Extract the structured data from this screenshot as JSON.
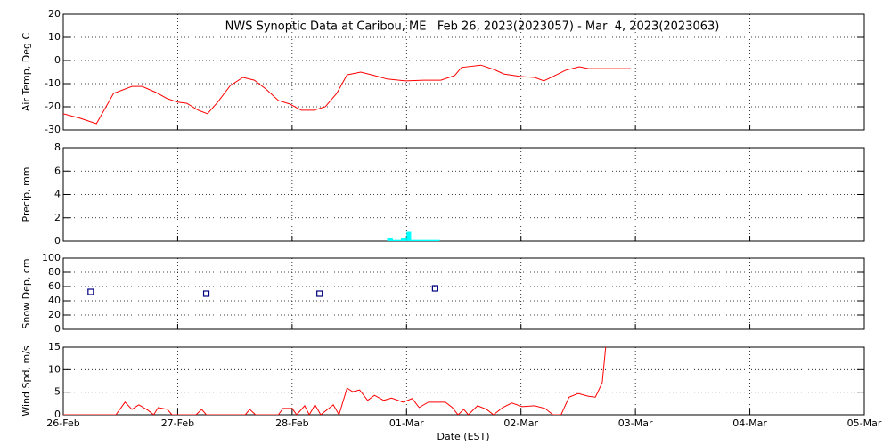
{
  "chart_data": [
    {
      "type": "line",
      "title": "NWS Synoptic Data at Caribou, ME   Feb 26, 2023(2023057) - Mar  4, 2023(2023063)",
      "ylabel": "Air Temp, Deg C",
      "color": "#ff0000",
      "grid": true,
      "ylim": [
        -30,
        20
      ],
      "yticks": [
        -30,
        -20,
        -10,
        0,
        10,
        20
      ],
      "x": [
        57.0,
        57.15,
        57.29,
        57.44,
        57.6,
        57.69,
        57.81,
        57.91,
        58.0,
        58.08,
        58.18,
        58.26,
        58.35,
        58.46,
        58.57,
        58.67,
        58.77,
        58.88,
        58.98,
        59.08,
        59.19,
        59.29,
        59.39,
        59.48,
        59.6,
        59.72,
        59.83,
        59.99,
        60.15,
        60.3,
        60.42,
        60.48,
        60.65,
        60.77,
        60.85,
        61.0,
        61.12,
        61.2,
        61.28,
        61.39,
        61.51,
        61.59,
        61.78,
        61.96
      ],
      "values": [
        -23,
        -25,
        -27.3,
        -14.2,
        -11.2,
        -11.2,
        -13.8,
        -16.5,
        -18,
        -18.5,
        -21.5,
        -23,
        -18,
        -10.8,
        -7.3,
        -8.5,
        -12.3,
        -17.3,
        -18.8,
        -21.5,
        -21.5,
        -20,
        -14.2,
        -6.2,
        -5,
        -6.5,
        -8,
        -8.8,
        -8.5,
        -8.5,
        -6.5,
        -3,
        -2,
        -4,
        -5.8,
        -6.9,
        -7.3,
        -8.8,
        -6.9,
        -4.2,
        -2.7,
        -3.5,
        -3.5,
        -3.5
      ]
    },
    {
      "type": "histogram",
      "ylabel": "Precip, mm",
      "color": "#00ffff",
      "grid": true,
      "ylim": [
        0,
        8
      ],
      "yticks": [
        0,
        2,
        4,
        6,
        8
      ],
      "bins": [
        59.83,
        59.88,
        59.95,
        60.0,
        60.04,
        60.29
      ],
      "values": [
        0.3,
        0.1,
        0.3,
        0.8,
        0.1
      ]
    },
    {
      "type": "scatter",
      "ylabel": "Snow Dep, cm",
      "color": "#000080",
      "grid": true,
      "ylim": [
        0,
        100
      ],
      "yticks": [
        0,
        20,
        40,
        60,
        80,
        100
      ],
      "x": [
        57.24,
        58.25,
        59.24,
        60.25
      ],
      "values": [
        52.5,
        50,
        50,
        57.5
      ]
    },
    {
      "type": "line",
      "ylabel": "Wind Spd, m/s",
      "xlabel": "Date (EST)",
      "color": "#ff0000",
      "grid": true,
      "ylim": [
        0,
        15
      ],
      "yticks": [
        0,
        5,
        10,
        15
      ],
      "xlim": [
        57,
        64
      ],
      "xticks": [
        {
          "value": 57,
          "label": "26-Feb"
        },
        {
          "value": 58,
          "label": "27-Feb"
        },
        {
          "value": 59,
          "label": "28-Feb"
        },
        {
          "value": 60,
          "label": "01-Mar"
        },
        {
          "value": 61,
          "label": "02-Mar"
        },
        {
          "value": 62,
          "label": "03-Mar"
        },
        {
          "value": 63,
          "label": "04-Mar"
        },
        {
          "value": 64,
          "label": "05-Mar"
        }
      ],
      "x": [
        57.0,
        57.46,
        57.54,
        57.6,
        57.66,
        57.74,
        57.79,
        57.83,
        57.91,
        57.95,
        58.16,
        58.21,
        58.25,
        58.59,
        58.63,
        58.68,
        58.88,
        58.92,
        59.0,
        59.04,
        59.11,
        59.15,
        59.2,
        59.25,
        59.36,
        59.41,
        59.48,
        59.53,
        59.59,
        59.66,
        59.72,
        59.8,
        59.87,
        59.97,
        60.05,
        60.11,
        60.19,
        60.26,
        60.34,
        60.4,
        60.45,
        60.5,
        60.54,
        60.62,
        60.7,
        60.76,
        60.84,
        60.92,
        61.01,
        61.12,
        61.21,
        61.28,
        61.35,
        61.42,
        61.5,
        61.59,
        61.65,
        61.71,
        61.74
      ],
      "values": [
        0,
        0,
        2.8,
        1.2,
        2.2,
        1.0,
        0,
        1.6,
        1.2,
        0,
        0,
        1.2,
        0,
        0,
        1.2,
        0,
        0,
        1.4,
        1.4,
        0,
        2,
        0,
        2.2,
        0,
        2.2,
        0,
        5.9,
        5.1,
        5.5,
        3.2,
        4.3,
        3.2,
        3.7,
        2.8,
        3.6,
        1.6,
        2.8,
        2.8,
        2.8,
        1.6,
        0,
        1.2,
        0,
        2,
        1.2,
        0,
        1.6,
        2.6,
        1.8,
        2,
        1.4,
        0,
        0,
        3.9,
        4.7,
        4.1,
        3.9,
        7.1,
        15
      ]
    }
  ]
}
